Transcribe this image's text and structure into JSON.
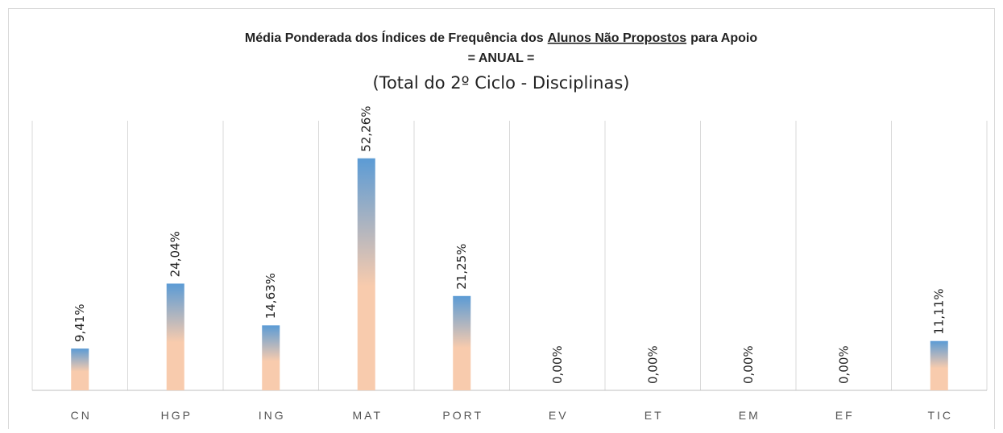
{
  "chart_data": {
    "type": "bar",
    "title": [
      "Média Ponderada dos Índices de Frequência dos",
      "Alunos Não Propostos",
      "para Apoio"
    ],
    "title_line2": "= ANUAL =",
    "subtitle": "(Total do 2º Ciclo - Disciplinas)",
    "categories": [
      "CN",
      "HGP",
      "ING",
      "MAT",
      "PORT",
      "EV",
      "ET",
      "EM",
      "EF",
      "TIC"
    ],
    "values": [
      9.41,
      24.04,
      14.63,
      52.26,
      21.25,
      0,
      0,
      0,
      0,
      11.11
    ],
    "value_labels": [
      "9,41%",
      "24,04%",
      "14,63%",
      "52,26%",
      "21,25%",
      "0,00%",
      "0,00%",
      "0,00%",
      "0,00%",
      "11,11%"
    ],
    "colors": [
      "#f8cbad",
      "#5b9bd5"
    ],
    "ylim": [
      0,
      60
    ],
    "grid": true
  }
}
